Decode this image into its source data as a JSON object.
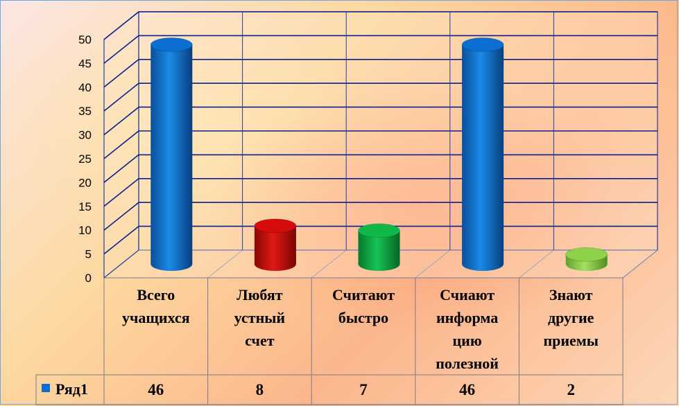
{
  "chart_data": {
    "type": "bar",
    "style": "3d-cylinder",
    "categories": [
      [
        "Всего",
        "учащихся"
      ],
      [
        "Любят",
        "устный",
        "счет"
      ],
      [
        "Считают",
        "быстро"
      ],
      [
        "Счиают",
        "информа",
        "цию",
        "полезной"
      ],
      [
        "Знают",
        "другие",
        "приемы"
      ]
    ],
    "series": [
      {
        "name": "Ряд1",
        "values": [
          46,
          8,
          7,
          46,
          2
        ]
      }
    ],
    "bar_colors": [
      "#0a6fd0",
      "#d60c0c",
      "#10b84a",
      "#0a6fd0",
      "#8ed24a"
    ],
    "ylim": [
      0,
      50
    ],
    "yticks": [
      0,
      5,
      10,
      15,
      20,
      25,
      30,
      35,
      40,
      45,
      50
    ],
    "grid": true,
    "legend_position": "data-table-left",
    "data_table": true
  }
}
